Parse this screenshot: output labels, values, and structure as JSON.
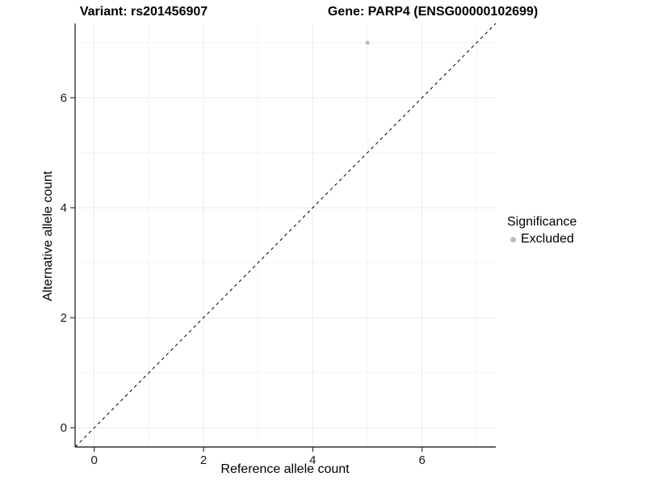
{
  "titles": {
    "variant": "Variant: rs201456907",
    "gene": "Gene: PARP4 (ENSG00000102699)"
  },
  "legend": {
    "title": "Significance",
    "items": [
      {
        "label": "Excluded",
        "color": "#bdbdbd"
      }
    ]
  },
  "colors": {
    "background": "#ffffff",
    "grid_major": "#ebebeb",
    "grid_minor": "#f4f4f4",
    "axis_line": "#333333",
    "tick_mark": "#333333",
    "tick_label": "#1a1a1a",
    "point": "#bdbdbd",
    "reference_line": "#000000"
  },
  "chart_data": {
    "type": "scatter",
    "title": "Variant: rs201456907    Gene: PARP4 (ENSG00000102699)",
    "xlabel": "Reference allele count",
    "ylabel": "Alternative allele count",
    "xlim": [
      -0.35,
      7.35
    ],
    "ylim": [
      -0.35,
      7.35
    ],
    "x_ticks": [
      0,
      2,
      4,
      6
    ],
    "y_ticks": [
      0,
      2,
      4,
      6
    ],
    "x_minor_ticks": [
      1,
      3,
      5,
      7
    ],
    "y_minor_ticks": [
      1,
      3,
      5,
      7
    ],
    "grid": true,
    "legend_position": "right",
    "series": [
      {
        "name": "Excluded",
        "color": "#bdbdbd",
        "points": [
          {
            "x": 5,
            "y": 7
          }
        ]
      }
    ],
    "reference_line": {
      "description": "identity line y = x",
      "from": [
        -0.35,
        -0.35
      ],
      "to": [
        7.35,
        7.35
      ],
      "style": "dashed",
      "color": "#000000"
    }
  }
}
